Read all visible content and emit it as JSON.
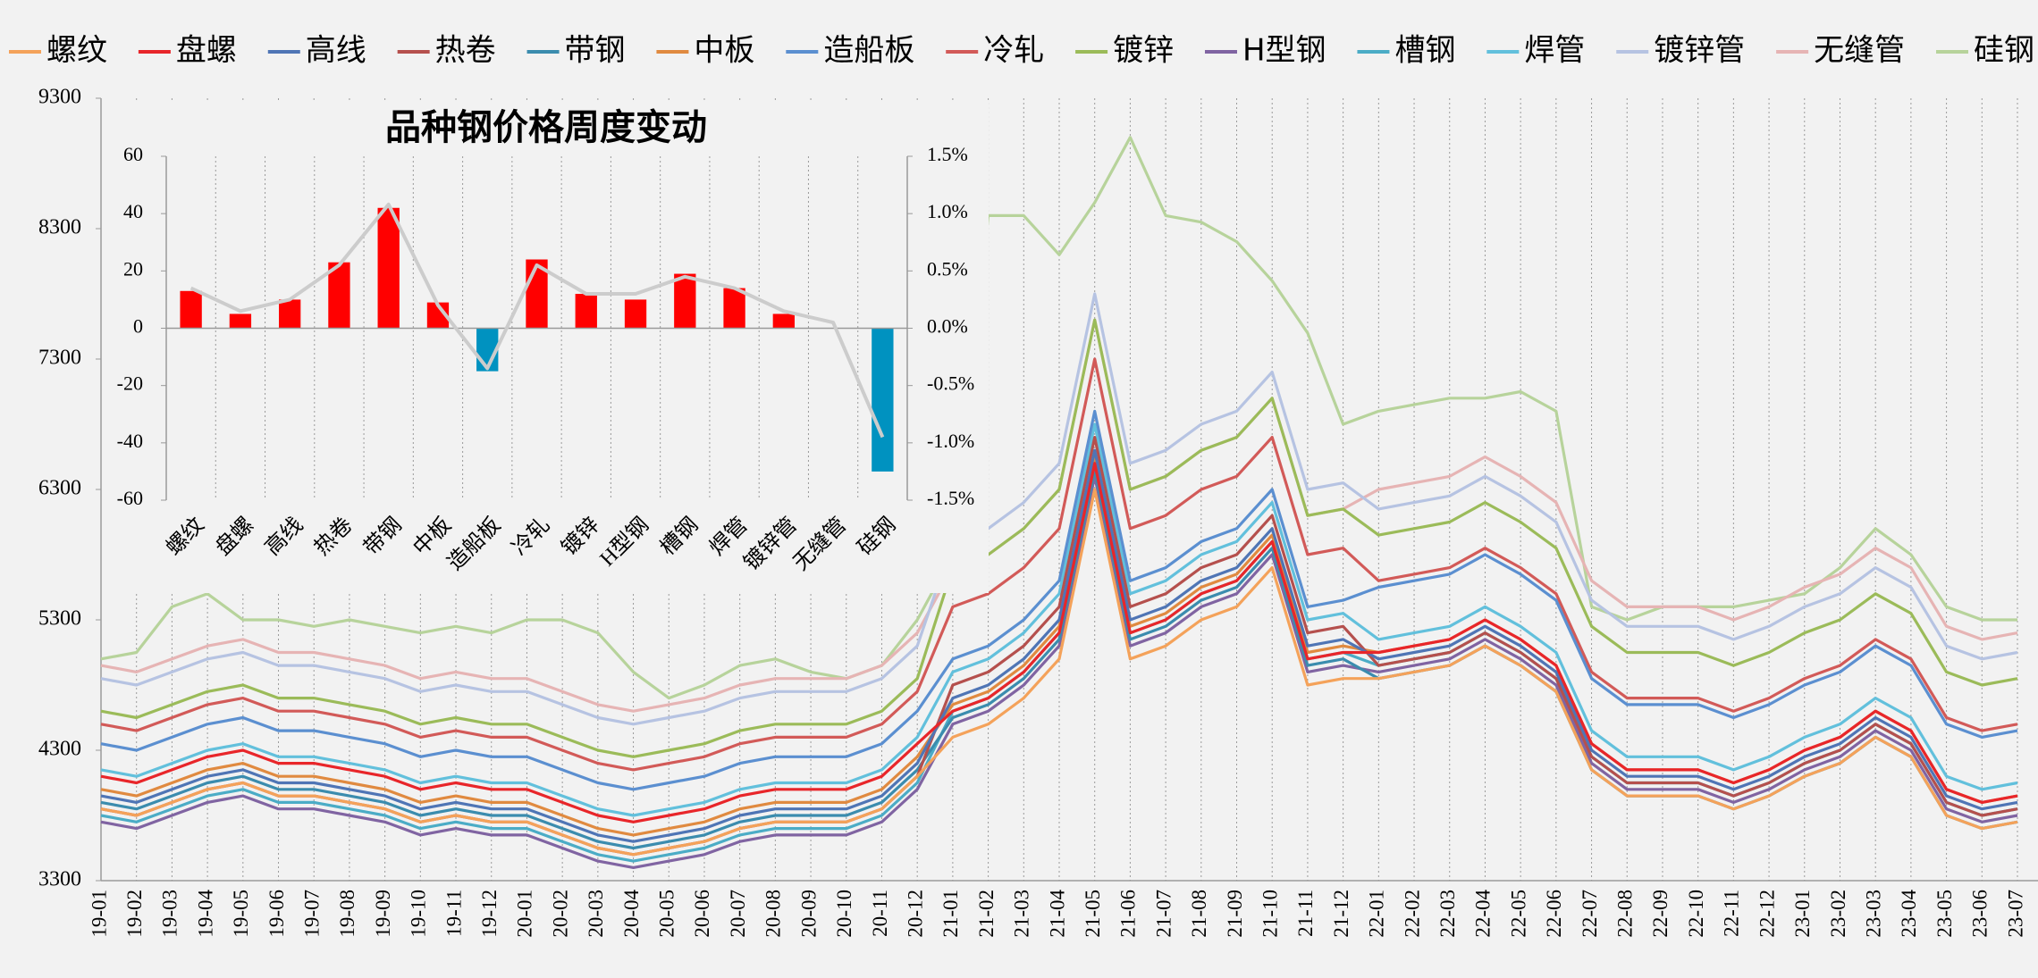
{
  "chart_data": [
    {
      "type": "line",
      "legend": "top",
      "xgrid": true,
      "categories": [
        "19-01",
        "19-02",
        "19-03",
        "19-04",
        "19-05",
        "19-06",
        "19-07",
        "19-08",
        "19-09",
        "19-10",
        "19-11",
        "19-12",
        "20-01",
        "20-02",
        "20-03",
        "20-04",
        "20-05",
        "20-06",
        "20-07",
        "20-08",
        "20-09",
        "20-10",
        "20-11",
        "20-12",
        "21-01",
        "21-02",
        "21-03",
        "21-04",
        "21-05",
        "21-06",
        "21-07",
        "21-08",
        "21-09",
        "21-10",
        "21-11",
        "21-12",
        "22-01",
        "22-02",
        "22-03",
        "22-04",
        "22-05",
        "22-06",
        "22-07",
        "22-08",
        "22-09",
        "22-10",
        "22-11",
        "22-12",
        "23-01",
        "23-02",
        "23-03",
        "23-04",
        "23-05",
        "23-06",
        "23-07"
      ],
      "ylim": [
        3300,
        9300
      ],
      "yticks": [
        3300,
        4300,
        5300,
        6300,
        7300,
        8300,
        9300
      ],
      "series": [
        {
          "name": "螺纹",
          "color": "#f4a25a",
          "values": [
            3850,
            3800,
            3900,
            4000,
            4050,
            3950,
            3950,
            3900,
            3850,
            3750,
            3800,
            3750,
            3750,
            3650,
            3550,
            3500,
            3550,
            3600,
            3700,
            3750,
            3750,
            3750,
            3850,
            4100,
            4400,
            4500,
            4700,
            5000,
            6300,
            5000,
            5100,
            5300,
            5400,
            5700,
            4800,
            4850,
            4850,
            4900,
            4950,
            5100,
            4950,
            4750,
            4150,
            3950,
            3950,
            3950,
            3850,
            3950,
            4100,
            4200,
            4400,
            4250,
            3800,
            3700,
            3750
          ]
        },
        {
          "name": "盘螺",
          "color": "#e8262a",
          "values": [
            4100,
            4050,
            4150,
            4250,
            4300,
            4200,
            4200,
            4150,
            4100,
            4000,
            4050,
            4000,
            4000,
            3900,
            3800,
            3750,
            3800,
            3850,
            3950,
            4000,
            4000,
            4000,
            4100,
            4350,
            4600,
            4700,
            4900,
            5200,
            6500,
            5200,
            5300,
            5500,
            5600,
            5900,
            5000,
            5050,
            5050,
            5100,
            5150,
            5300,
            5150,
            4950,
            4350,
            4150,
            4150,
            4150,
            4050,
            4150,
            4300,
            4400,
            4600,
            4450,
            4000,
            3900,
            3950
          ]
        },
        {
          "name": "高线",
          "color": "#4f75b5",
          "values": [
            3950,
            3900,
            4000,
            4100,
            4150,
            4050,
            4050,
            4000,
            3950,
            3850,
            3900,
            3850,
            3850,
            3750,
            3650,
            3600,
            3650,
            3700,
            3800,
            3850,
            3850,
            3850,
            3950,
            4200,
            4700,
            4800,
            5000,
            5300,
            6600,
            5300,
            5400,
            5600,
            5700,
            6000,
            5100,
            5150,
            5000,
            5050,
            5100,
            5250,
            5100,
            4900,
            4300,
            4100,
            4100,
            4100,
            4000,
            4100,
            4250,
            4350,
            4550,
            4400,
            3950,
            3850,
            3900
          ]
        },
        {
          "name": "热卷",
          "color": "#b5504d",
          "values": [
            3850,
            3800,
            3900,
            4000,
            4050,
            3950,
            3950,
            3900,
            3850,
            3750,
            3800,
            3750,
            3750,
            3650,
            3550,
            3500,
            3550,
            3600,
            3700,
            3750,
            3750,
            3750,
            3850,
            4100,
            4800,
            4900,
            5100,
            5400,
            6700,
            5400,
            5500,
            5700,
            5800,
            6100,
            5200,
            5250,
            4950,
            5000,
            5050,
            5200,
            5050,
            4850,
            4250,
            4050,
            4050,
            4050,
            3950,
            4050,
            4200,
            4300,
            4500,
            4350,
            3900,
            3800,
            3850
          ]
        },
        {
          "name": "带钢",
          "color": "#3b8cae",
          "values": [
            3900,
            3850,
            3950,
            4050,
            4100,
            4000,
            4000,
            3950,
            3900,
            3800,
            3850,
            3800,
            3800,
            3700,
            3600,
            3550,
            3600,
            3650,
            3750,
            3800,
            3800,
            3800,
            3900,
            4150,
            4550,
            4650,
            4850,
            5150,
            6450,
            5150,
            5250,
            5450,
            5550,
            5850,
            4950,
            5000,
            4850,
            4900,
            4950,
            5100,
            4950,
            4750,
            4150,
            3950,
            3950,
            3950,
            3850,
            3950,
            4100,
            4200,
            4400,
            4250,
            3800,
            3700,
            3750
          ]
        },
        {
          "name": "中板",
          "color": "#e08a40",
          "values": [
            4000,
            3950,
            4050,
            4150,
            4200,
            4100,
            4100,
            4050,
            4000,
            3900,
            3950,
            3900,
            3900,
            3800,
            3700,
            3650,
            3700,
            3750,
            3850,
            3900,
            3900,
            3900,
            4000,
            4250,
            4650,
            4750,
            4950,
            5250,
            6550,
            5250,
            5350,
            5550,
            5650,
            5950,
            5050,
            5100,
            5050,
            5100,
            5150,
            5300,
            5150,
            4950,
            4350,
            4150,
            4150,
            4150,
            4050,
            4150,
            4300,
            4400,
            4600,
            4450,
            4000,
            3900,
            3950
          ]
        },
        {
          "name": "造船板",
          "color": "#5b8fd0",
          "values": [
            4350,
            4300,
            4400,
            4500,
            4550,
            4450,
            4450,
            4400,
            4350,
            4250,
            4300,
            4250,
            4250,
            4150,
            4050,
            4000,
            4050,
            4100,
            4200,
            4250,
            4250,
            4250,
            4350,
            4600,
            5000,
            5100,
            5300,
            5600,
            6900,
            5600,
            5700,
            5900,
            6000,
            6300,
            5400,
            5450,
            5550,
            5600,
            5650,
            5800,
            5650,
            5450,
            4850,
            4650,
            4650,
            4650,
            4550,
            4650,
            4800,
            4900,
            5100,
            4950,
            4500,
            4400,
            4450
          ]
        },
        {
          "name": "冷轧",
          "color": "#d25a58",
          "values": [
            4500,
            4450,
            4550,
            4650,
            4700,
            4600,
            4600,
            4550,
            4500,
            4400,
            4450,
            4400,
            4400,
            4300,
            4200,
            4150,
            4200,
            4250,
            4350,
            4400,
            4400,
            4400,
            4500,
            4750,
            5400,
            5500,
            5700,
            6000,
            7300,
            6000,
            6100,
            6300,
            6400,
            6700,
            5800,
            5850,
            5600,
            5650,
            5700,
            5850,
            5700,
            5500,
            4900,
            4700,
            4700,
            4700,
            4600,
            4700,
            4850,
            4950,
            5150,
            5000,
            4550,
            4450,
            4500
          ]
        },
        {
          "name": "镀锌",
          "color": "#9bbb59",
          "values": [
            4600,
            4550,
            4650,
            4750,
            4800,
            4700,
            4700,
            4650,
            4600,
            4500,
            4550,
            4500,
            4500,
            4400,
            4300,
            4250,
            4300,
            4350,
            4450,
            4500,
            4500,
            4500,
            4600,
            4850,
            5700,
            5800,
            6000,
            6300,
            7600,
            6300,
            6400,
            6600,
            6700,
            7000,
            6100,
            6150,
            5950,
            6000,
            6050,
            6200,
            6050,
            5850,
            5250,
            5050,
            5050,
            5050,
            4950,
            5050,
            5200,
            5300,
            5500,
            5350,
            4900,
            4800,
            4850
          ]
        },
        {
          "name": "H型钢",
          "color": "#8064a2",
          "values": [
            3750,
            3700,
            3800,
            3900,
            3950,
            3850,
            3850,
            3800,
            3750,
            3650,
            3700,
            3650,
            3650,
            3550,
            3450,
            3400,
            3450,
            3500,
            3600,
            3650,
            3650,
            3650,
            3750,
            4000,
            4500,
            4600,
            4800,
            5100,
            6400,
            5100,
            5200,
            5400,
            5500,
            5800,
            4900,
            4950,
            4900,
            4950,
            5000,
            5150,
            5000,
            4800,
            4200,
            4000,
            4000,
            4000,
            3900,
            4000,
            4150,
            4250,
            4450,
            4300,
            3850,
            3750,
            3800
          ]
        },
        {
          "name": "槽钢",
          "color": "#4bacc6",
          "values": [
            3800,
            3750,
            3850,
            3950,
            4000,
            3900,
            3900,
            3850,
            3800,
            3700,
            3750,
            3700,
            3700,
            3600,
            3500,
            3450,
            3500,
            3550,
            3650,
            3700,
            3700,
            3700,
            3800,
            4050,
            4600,
            4700,
            4900,
            5200,
            6500,
            5200,
            5300,
            5500,
            5600,
            5900,
            5000,
            5050,
            4950,
            5000,
            5050,
            5200,
            5050,
            4850,
            4250,
            4050,
            4050,
            4050,
            3950,
            4050,
            4200,
            4300,
            4500,
            4350,
            3900,
            3800,
            3850
          ]
        },
        {
          "name": "焊管",
          "color": "#62c0dc",
          "values": [
            4150,
            4100,
            4200,
            4300,
            4350,
            4250,
            4250,
            4200,
            4150,
            4050,
            4100,
            4050,
            4050,
            3950,
            3850,
            3800,
            3850,
            3900,
            4000,
            4050,
            4050,
            4050,
            4150,
            4400,
            4900,
            5000,
            5200,
            5500,
            6800,
            5500,
            5600,
            5800,
            5900,
            6200,
            5300,
            5350,
            5150,
            5200,
            5250,
            5400,
            5250,
            5050,
            4450,
            4250,
            4250,
            4250,
            4150,
            4250,
            4400,
            4500,
            4700,
            4550,
            4100,
            4000,
            4050
          ]
        },
        {
          "name": "镀锌管",
          "color": "#b6c3e2",
          "values": [
            4850,
            4800,
            4900,
            5000,
            5050,
            4950,
            4950,
            4900,
            4850,
            4750,
            4800,
            4750,
            4750,
            4650,
            4550,
            4500,
            4550,
            4600,
            4700,
            4750,
            4750,
            4750,
            4850,
            5100,
            5900,
            6000,
            6200,
            6500,
            7800,
            6500,
            6600,
            6800,
            6900,
            7200,
            6300,
            6350,
            6150,
            6200,
            6250,
            6400,
            6250,
            6050,
            5450,
            5250,
            5250,
            5250,
            5150,
            5250,
            5400,
            5500,
            5700,
            5550,
            5100,
            5000,
            5050
          ]
        },
        {
          "name": "无缝管",
          "color": "#e6b4b4",
          "values": [
            4950,
            4900,
            5000,
            5100,
            5150,
            5050,
            5050,
            5000,
            4950,
            4850,
            4900,
            4850,
            4850,
            4750,
            4650,
            4600,
            4650,
            4700,
            4800,
            4850,
            4850,
            4850,
            4950,
            5200,
            5700,
            5800,
            6000,
            6300,
            7600,
            6300,
            6400,
            6600,
            6700,
            7000,
            6100,
            6150,
            6300,
            6350,
            6400,
            6550,
            6400,
            6200,
            5600,
            5400,
            5400,
            5400,
            5300,
            5400,
            5550,
            5650,
            5850,
            5700,
            5250,
            5150,
            5200
          ]
        },
        {
          "name": "硅钢",
          "color": "#b7d39b",
          "values": [
            5000,
            5050,
            5400,
            5500,
            5300,
            5300,
            5250,
            5300,
            5250,
            5200,
            5250,
            5200,
            5300,
            5300,
            5200,
            4900,
            4700,
            4800,
            4950,
            5000,
            4900,
            4850,
            4950,
            5300,
            5800,
            8400,
            8400,
            8100,
            8500,
            9000,
            8400,
            8350,
            8200,
            7900,
            7500,
            6800,
            6900,
            6950,
            7000,
            7000,
            7050,
            6900,
            5400,
            5300,
            5400,
            5400,
            5400,
            5450,
            5500,
            5700,
            6000,
            5800,
            5400,
            5300,
            5300
          ]
        }
      ]
    },
    {
      "type": "bar",
      "title": "品种钢价格周度变动",
      "xgrid": true,
      "categories": [
        "螺纹",
        "盘螺",
        "高线",
        "热卷",
        "带钢",
        "中板",
        "造船板",
        "冷轧",
        "镀锌",
        "H型钢",
        "槽钢",
        "焊管",
        "镀锌管",
        "无缝管",
        "硅钢"
      ],
      "values": [
        13,
        5,
        10,
        23,
        42,
        9,
        -15,
        24,
        12,
        10,
        19,
        14,
        5,
        0,
        -50
      ],
      "color": "#ff0000",
      "negative_color": "#0092c0",
      "ylim": [
        -60,
        60
      ],
      "yticks": [
        -60,
        -40,
        -20,
        0,
        20,
        40,
        60
      ],
      "line": {
        "values": [
          0.35,
          0.15,
          0.25,
          0.55,
          1.08,
          0.2,
          -0.35,
          0.55,
          0.3,
          0.3,
          0.45,
          0.35,
          0.15,
          0.05,
          -0.95
        ],
        "color": "#cccccc",
        "axis": "y2"
      },
      "y2lim": [
        -1.5,
        1.5
      ],
      "y2ticks": [
        {
          "value": -1.5,
          "label": "-1.5%"
        },
        {
          "value": -1,
          "label": "-1.0%"
        },
        {
          "value": -0.5,
          "label": "-0.5%"
        },
        {
          "value": 0,
          "label": "0.0%"
        },
        {
          "value": 0.5,
          "label": "0.5%"
        },
        {
          "value": 1,
          "label": "1.0%"
        },
        {
          "value": 1.5,
          "label": "1.5%"
        }
      ]
    }
  ]
}
